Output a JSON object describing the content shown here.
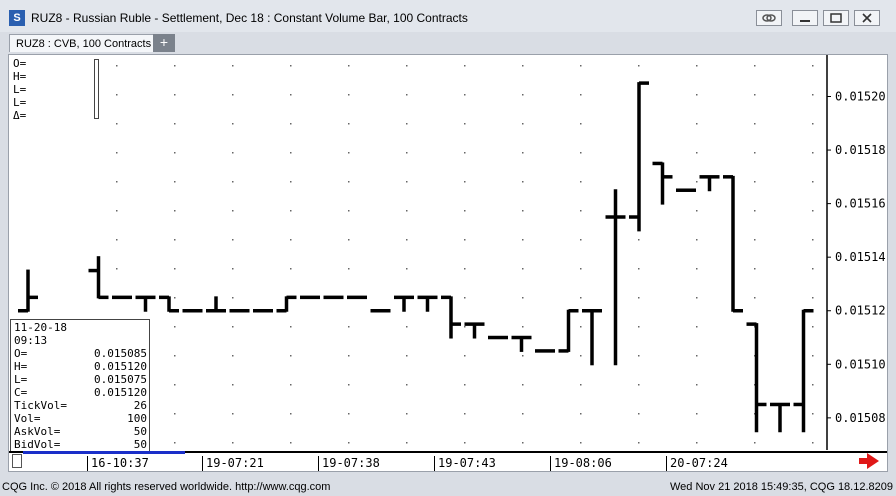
{
  "window": {
    "icon_letter": "S",
    "title": "RUZ8 - Russian Ruble - Settlement, Dec 18 : Constant Volume Bar, 100 Contracts"
  },
  "tabs": [
    {
      "label": "RUZ8 : CVB, 100 Contracts",
      "active": true
    }
  ],
  "add_tab_label": "+",
  "ohlc_header": [
    "O=",
    "H=",
    "L=",
    "L=",
    "Δ="
  ],
  "info_box": {
    "date": "11-20-18",
    "time": "09:13",
    "rows": [
      {
        "label": "O=",
        "value": "0.015085"
      },
      {
        "label": "H=",
        "value": "0.015120"
      },
      {
        "label": "L=",
        "value": "0.015075"
      },
      {
        "label": "C=",
        "value": "0.015120"
      },
      {
        "label": "TickVol=",
        "value": "26"
      },
      {
        "label": "Vol=",
        "value": "100"
      },
      {
        "label": "AskVol=",
        "value": "50"
      },
      {
        "label": "BidVol=",
        "value": "50"
      }
    ]
  },
  "x_axis_labels": [
    "16-10:37",
    "19-07:21",
    "19-07:38",
    "19-07:43",
    "19-08:06",
    "20-07:24"
  ],
  "status": {
    "copyright": "CQG Inc. © 2018 All rights reserved worldwide. http://www.cqg.com",
    "right": "Wed Nov 21 2018 15:49:35, CQG 18.12.8209"
  },
  "colors": {
    "bar": "#000000",
    "accent_blue": "#1a2fc9",
    "arrow_red": "#e01818"
  },
  "chart_data": {
    "type": "ohlc",
    "y_tick_labels": [
      "0.01520",
      "0.01518",
      "0.01516",
      "0.01514",
      "0.01512",
      "0.01510",
      "0.01508"
    ],
    "ylim": [
      0.015068,
      0.015214
    ],
    "grid": "dotted",
    "bars": [
      {
        "o": 0.01512,
        "h": 0.015135,
        "l": 0.01512,
        "c": 0.015125
      },
      {
        "o": 0.015085,
        "h": 0.015085,
        "l": 0.015075,
        "c": 0.015085
      },
      {
        "o": 0.015085,
        "h": 0.0151,
        "l": 0.015075,
        "c": 0.015095
      },
      {
        "o": 0.015135,
        "h": 0.01514,
        "l": 0.015125,
        "c": 0.015125
      },
      {
        "o": 0.015125,
        "h": 0.015125,
        "l": 0.015125,
        "c": 0.015125
      },
      {
        "o": 0.015125,
        "h": 0.015125,
        "l": 0.01512,
        "c": 0.015125
      },
      {
        "o": 0.015125,
        "h": 0.015125,
        "l": 0.01512,
        "c": 0.01512
      },
      {
        "o": 0.01512,
        "h": 0.01512,
        "l": 0.01512,
        "c": 0.01512
      },
      {
        "o": 0.01512,
        "h": 0.015125,
        "l": 0.01512,
        "c": 0.01512
      },
      {
        "o": 0.01512,
        "h": 0.01512,
        "l": 0.01512,
        "c": 0.01512
      },
      {
        "o": 0.01512,
        "h": 0.01512,
        "l": 0.01512,
        "c": 0.01512
      },
      {
        "o": 0.01512,
        "h": 0.015125,
        "l": 0.01512,
        "c": 0.015125
      },
      {
        "o": 0.015125,
        "h": 0.015125,
        "l": 0.015125,
        "c": 0.015125
      },
      {
        "o": 0.015125,
        "h": 0.015125,
        "l": 0.015125,
        "c": 0.015125
      },
      {
        "o": 0.015125,
        "h": 0.015125,
        "l": 0.015125,
        "c": 0.015125
      },
      {
        "o": 0.01512,
        "h": 0.01512,
        "l": 0.01512,
        "c": 0.01512
      },
      {
        "o": 0.015125,
        "h": 0.015125,
        "l": 0.01512,
        "c": 0.015125
      },
      {
        "o": 0.015125,
        "h": 0.015125,
        "l": 0.01512,
        "c": 0.015125
      },
      {
        "o": 0.015125,
        "h": 0.015125,
        "l": 0.01511,
        "c": 0.015115
      },
      {
        "o": 0.015115,
        "h": 0.015115,
        "l": 0.01511,
        "c": 0.015115
      },
      {
        "o": 0.01511,
        "h": 0.01511,
        "l": 0.01511,
        "c": 0.01511
      },
      {
        "o": 0.01511,
        "h": 0.01511,
        "l": 0.015105,
        "c": 0.01511
      },
      {
        "o": 0.015105,
        "h": 0.015105,
        "l": 0.015105,
        "c": 0.015105
      },
      {
        "o": 0.015105,
        "h": 0.01512,
        "l": 0.015105,
        "c": 0.01512
      },
      {
        "o": 0.01512,
        "h": 0.01512,
        "l": 0.0151,
        "c": 0.01512
      },
      {
        "o": 0.015155,
        "h": 0.015165,
        "l": 0.0151,
        "c": 0.015155
      },
      {
        "o": 0.015155,
        "h": 0.015205,
        "l": 0.01515,
        "c": 0.015205
      },
      {
        "o": 0.015175,
        "h": 0.015175,
        "l": 0.01516,
        "c": 0.01517
      },
      {
        "o": 0.015165,
        "h": 0.015165,
        "l": 0.015165,
        "c": 0.015165
      },
      {
        "o": 0.01517,
        "h": 0.01517,
        "l": 0.015165,
        "c": 0.01517
      },
      {
        "o": 0.01517,
        "h": 0.01517,
        "l": 0.01512,
        "c": 0.01512
      },
      {
        "o": 0.015115,
        "h": 0.015115,
        "l": 0.015075,
        "c": 0.015085
      },
      {
        "o": 0.015085,
        "h": 0.015085,
        "l": 0.015075,
        "c": 0.015085
      },
      {
        "o": 0.015085,
        "h": 0.01512,
        "l": 0.015075,
        "c": 0.01512
      }
    ]
  }
}
